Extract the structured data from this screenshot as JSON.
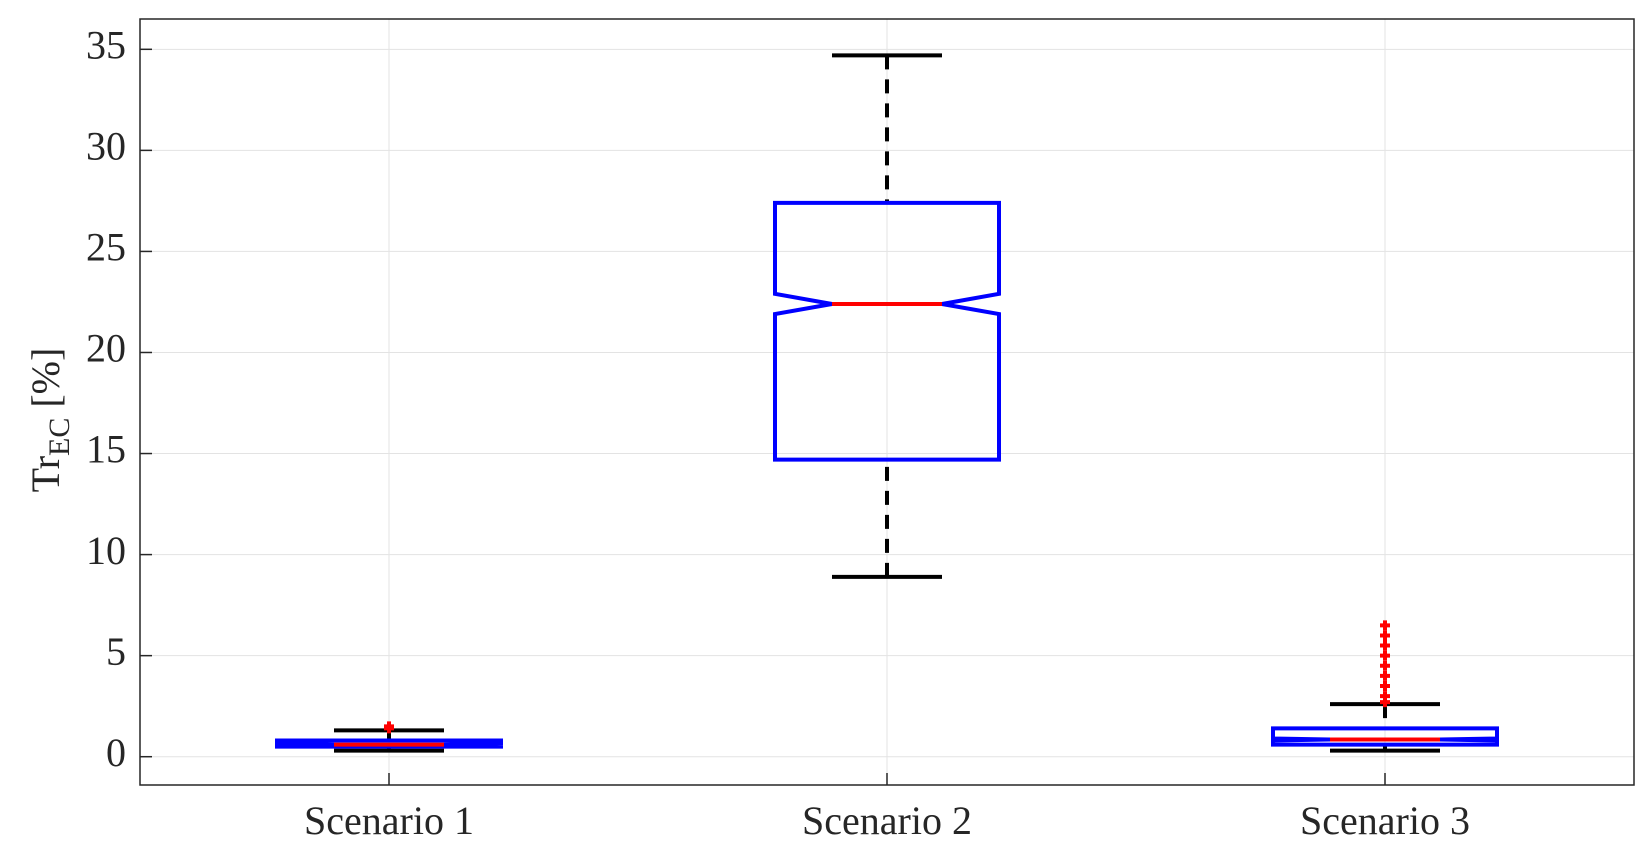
{
  "chart_data": {
    "type": "box",
    "y_label": {
      "main": "Tr",
      "sub": "EC",
      "unit": "[%]"
    },
    "categories": [
      "Scenario 1",
      "Scenario 2",
      "Scenario 3"
    ],
    "boxes": [
      {
        "whisker_low": 0.3,
        "q1": 0.5,
        "notch_low": 0.55,
        "median": 0.6,
        "notch_high": 0.65,
        "q3": 0.8,
        "whisker_high": 1.3,
        "outliers": [
          1.4,
          1.5
        ]
      },
      {
        "whisker_low": 8.9,
        "q1": 14.7,
        "notch_low": 21.9,
        "median": 22.4,
        "notch_high": 22.9,
        "q3": 27.4,
        "whisker_high": 34.7,
        "outliers": []
      },
      {
        "whisker_low": 0.3,
        "q1": 0.6,
        "notch_low": 0.8,
        "median": 0.85,
        "notch_high": 0.9,
        "q3": 1.4,
        "whisker_high": 2.6,
        "outliers": [
          2.7,
          3.0,
          3.5,
          4.0,
          4.5,
          5.0,
          5.5,
          6.0,
          6.5
        ]
      }
    ],
    "box_color": "#0000ff",
    "median_color": "#ff0000",
    "whisker_color": "#000000",
    "outlier_color": "#ff0000",
    "ylim": [
      -1.4,
      36.5
    ],
    "yticks": [
      0,
      5,
      10,
      15,
      20,
      25,
      30,
      35
    ],
    "grid": true
  }
}
